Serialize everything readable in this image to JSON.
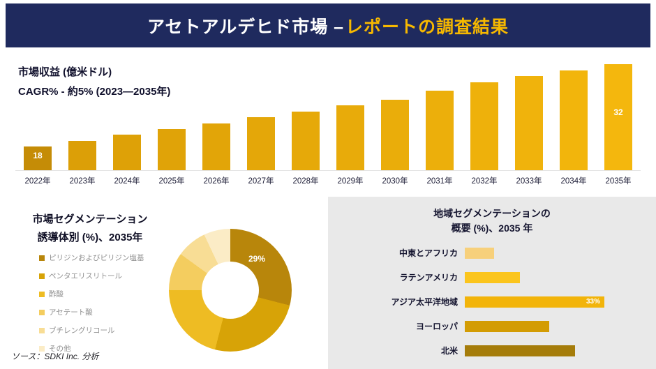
{
  "header": {
    "title_white": "アセトアルデヒド市場 –",
    "title_yellow": "レポートの調査結果",
    "bg_color": "#1f2a5e",
    "accent_color": "#f6b800"
  },
  "revenue": {
    "label1": "市場収益 (億米ドル)",
    "label2": "CAGR% - 約5% (2023―2035年)"
  },
  "segmentation": {
    "title_line1": "市場セグメンテーション",
    "title_line2": "誘導体別 (%)、2035年",
    "donut_label": "29%"
  },
  "region": {
    "title_line1": "地域セグメンテーションの",
    "title_line2": "概要 (%)、2035 年"
  },
  "source": "ソース：SDKI Inc. 分析",
  "chart_data": [
    {
      "type": "bar",
      "title": "市場収益 (億米ドル)",
      "subtitle": "CAGR% - 約5% (2023―2035年)",
      "categories": [
        "2022年",
        "2023年",
        "2024年",
        "2025年",
        "2026年",
        "2027年",
        "2028年",
        "2029年",
        "2030年",
        "2031年",
        "2032年",
        "2033年",
        "2034年",
        "2035年"
      ],
      "values": [
        18,
        19,
        20,
        21,
        22,
        23,
        24,
        25,
        26,
        27.5,
        29,
        30,
        31,
        32
      ],
      "data_labels": {
        "2022年": "18",
        "2035年": "32"
      },
      "axis_min": 14,
      "axis_max": 33,
      "colors": [
        "#c58c06",
        "#dc9f07",
        "#dea107",
        "#e0a308",
        "#e2a508",
        "#e4a709",
        "#e6a909",
        "#e8ab0a",
        "#eaad0a",
        "#ecaf0b",
        "#eeb10b",
        "#f0b30c",
        "#f2b50c",
        "#f4b70d"
      ]
    },
    {
      "type": "donut",
      "title": "市場セグメンテーション 誘導体別 (%)、2035年",
      "labels": [
        "ピリジンおよびピリジン塩基",
        "ペンタエリスリトール",
        "酢酸",
        "アセテート酸",
        "ブチレングリコール",
        "その他"
      ],
      "values": [
        29,
        25,
        21,
        10,
        8,
        7
      ],
      "colors": [
        "#b8860b",
        "#d7a307",
        "#eebc23",
        "#f4cd5f",
        "#f8dd95",
        "#fbecc6"
      ],
      "data_labels": {
        "ピリジンおよびピリジン塩基": "29%"
      }
    },
    {
      "type": "bar_horizontal",
      "title": "地域セグメンテーションの概要 (%)、2035 年",
      "categories": [
        "中東とアフリカ",
        "ラテンアメリカ",
        "アジア太平洋地域",
        "ヨーロッパ",
        "北米"
      ],
      "values": [
        7,
        13,
        33,
        20,
        26
      ],
      "colors": [
        "#f7d07b",
        "#fbc51d",
        "#f2b40a",
        "#d39c04",
        "#a57c0a"
      ],
      "data_labels": {
        "アジア太平洋地域": "33%"
      }
    }
  ]
}
